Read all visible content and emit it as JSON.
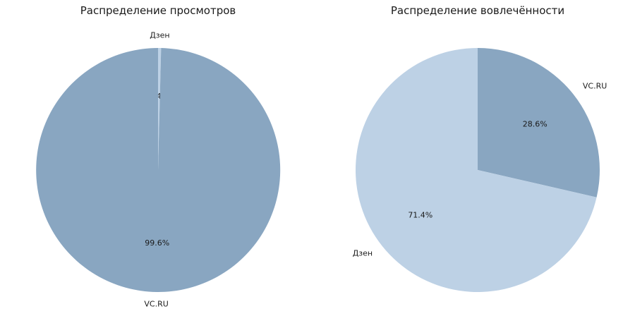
{
  "chart_data": [
    {
      "type": "pie",
      "title": "Распределение просмотров",
      "categories": [
        "Дзен",
        "VC.RU"
      ],
      "values": [
        0.4,
        99.6
      ],
      "labels": [
        "0.4%",
        "99.6%"
      ],
      "colors": [
        "#bdd1e5",
        "#89a6c1"
      ]
    },
    {
      "type": "pie",
      "title": "Распределение вовлечённости",
      "categories": [
        "VC.RU",
        "Дзен"
      ],
      "values": [
        28.6,
        71.4
      ],
      "labels": [
        "28.6%",
        "71.4%"
      ],
      "colors": [
        "#89a6c1",
        "#bdd1e5"
      ]
    }
  ]
}
